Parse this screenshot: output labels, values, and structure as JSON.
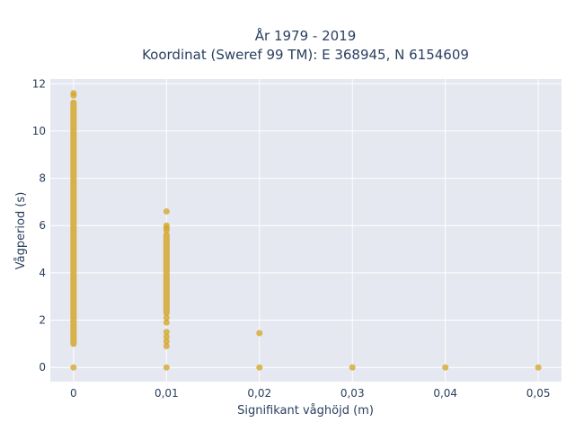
{
  "chart_data": {
    "type": "scatter",
    "title": "År 1979 - 2019",
    "subtitle": "Koordinat (Sweref 99 TM): E 368945, N 6154609",
    "xlabel": "Signifikant våghöjd (m)",
    "ylabel": "Vågperiod (s)",
    "xlim": [
      -0.0025,
      0.0525
    ],
    "ylim": [
      -0.6,
      12.2
    ],
    "x_ticks": [
      0,
      0.01,
      0.02,
      0.03,
      0.04,
      0.05
    ],
    "x_tick_labels": [
      "0",
      "0,01",
      "0,02",
      "0,03",
      "0,04",
      "0,05"
    ],
    "y_ticks": [
      0,
      2,
      4,
      6,
      8,
      10,
      12
    ],
    "y_tick_labels": [
      "0",
      "2",
      "4",
      "6",
      "8",
      "10",
      "12"
    ],
    "grid": true,
    "colors": {
      "marker": "#d4a72c",
      "plot_bg": "#e5e8f0",
      "grid": "#ffffff"
    },
    "clusters": [
      {
        "x": 0,
        "ranges": [
          [
            1.0,
            11.2
          ]
        ],
        "points": [
          0,
          11.5,
          11.6
        ]
      },
      {
        "x": 0.01,
        "ranges": [
          [
            2.3,
            5.6
          ]
        ],
        "points": [
          0,
          0.9,
          1.1,
          1.3,
          1.5,
          1.9,
          2.1,
          5.8,
          5.9,
          6.0,
          6.6
        ]
      },
      {
        "x": 0.02,
        "ranges": [],
        "points": [
          0,
          1.45
        ]
      },
      {
        "x": 0.03,
        "ranges": [],
        "points": [
          0
        ]
      },
      {
        "x": 0.04,
        "ranges": [],
        "points": [
          0
        ]
      },
      {
        "x": 0.05,
        "ranges": [],
        "points": [
          0
        ]
      }
    ]
  }
}
